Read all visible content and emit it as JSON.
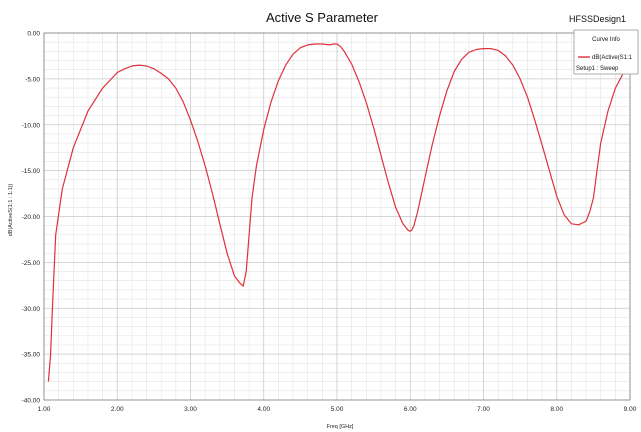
{
  "title": "Active S Parameter",
  "design_name": "HFSSDesign1",
  "legend": {
    "header": "Curve Info",
    "entry": "dB(Active(S1:1",
    "setup": "Setup1 : Sweep",
    "color": "#e0303a"
  },
  "chart_data": {
    "type": "line",
    "title": "Active S Parameter",
    "xlabel": "Freq [GHz]",
    "ylabel": "dB(ActiveS(1:1 : 1:1))",
    "xlim": [
      1.0,
      9.0
    ],
    "ylim": [
      -40.0,
      0.0
    ],
    "x_ticks": [
      "1.00",
      "2.00",
      "3.00",
      "4.00",
      "5.00",
      "6.00",
      "7.00",
      "8.00",
      "9.00"
    ],
    "y_ticks": [
      "0.00",
      "-5.00",
      "-10.00",
      "-15.00",
      "-20.00",
      "-25.00",
      "-30.00",
      "-35.00",
      "-40.00"
    ],
    "grid": true,
    "legend_position": "top-right",
    "series": [
      {
        "color": "#e0303a",
        "x": [
          1.06,
          1.09,
          1.12,
          1.16,
          1.25,
          1.4,
          1.6,
          1.8,
          2.0,
          2.1,
          2.2,
          2.3,
          2.4,
          2.5,
          2.6,
          2.7,
          2.8,
          2.9,
          3.0,
          3.1,
          3.2,
          3.3,
          3.4,
          3.5,
          3.6,
          3.68,
          3.72,
          3.76,
          3.8,
          3.84,
          3.9,
          4.0,
          4.1,
          4.2,
          4.3,
          4.4,
          4.5,
          4.6,
          4.7,
          4.8,
          4.9,
          4.95,
          5.0,
          5.05,
          5.1,
          5.2,
          5.3,
          5.4,
          5.5,
          5.6,
          5.7,
          5.8,
          5.9,
          5.97,
          6.0,
          6.02,
          6.05,
          6.1,
          6.2,
          6.3,
          6.4,
          6.5,
          6.6,
          6.7,
          6.8,
          6.9,
          7.0,
          7.1,
          7.2,
          7.3,
          7.4,
          7.5,
          7.6,
          7.7,
          7.8,
          7.9,
          8.0,
          8.1,
          8.2,
          8.3,
          8.4,
          8.45,
          8.5,
          8.55,
          8.6,
          8.7,
          8.8,
          8.9
        ],
        "y": [
          -38.0,
          -35.0,
          -29.0,
          -22.0,
          -17.0,
          -12.5,
          -8.5,
          -6.0,
          -4.3,
          -3.9,
          -3.6,
          -3.5,
          -3.6,
          -3.9,
          -4.4,
          -5.0,
          -6.0,
          -7.5,
          -9.5,
          -11.8,
          -14.5,
          -17.5,
          -20.8,
          -24.0,
          -26.5,
          -27.3,
          -27.6,
          -26.0,
          -22.0,
          -18.0,
          -14.5,
          -10.5,
          -7.5,
          -5.2,
          -3.5,
          -2.3,
          -1.6,
          -1.3,
          -1.2,
          -1.2,
          -1.3,
          -1.2,
          -1.2,
          -1.5,
          -2.0,
          -3.4,
          -5.3,
          -7.6,
          -10.3,
          -13.3,
          -16.3,
          -19.0,
          -20.8,
          -21.5,
          -21.6,
          -21.5,
          -21.0,
          -19.5,
          -15.8,
          -12.2,
          -9.0,
          -6.3,
          -4.2,
          -2.9,
          -2.1,
          -1.8,
          -1.7,
          -1.7,
          -1.9,
          -2.5,
          -3.5,
          -5.0,
          -7.0,
          -9.5,
          -12.2,
          -15.0,
          -17.8,
          -19.8,
          -20.8,
          -20.9,
          -20.5,
          -19.5,
          -18.0,
          -15.0,
          -12.0,
          -8.5,
          -6.0,
          -4.5
        ]
      }
    ]
  }
}
